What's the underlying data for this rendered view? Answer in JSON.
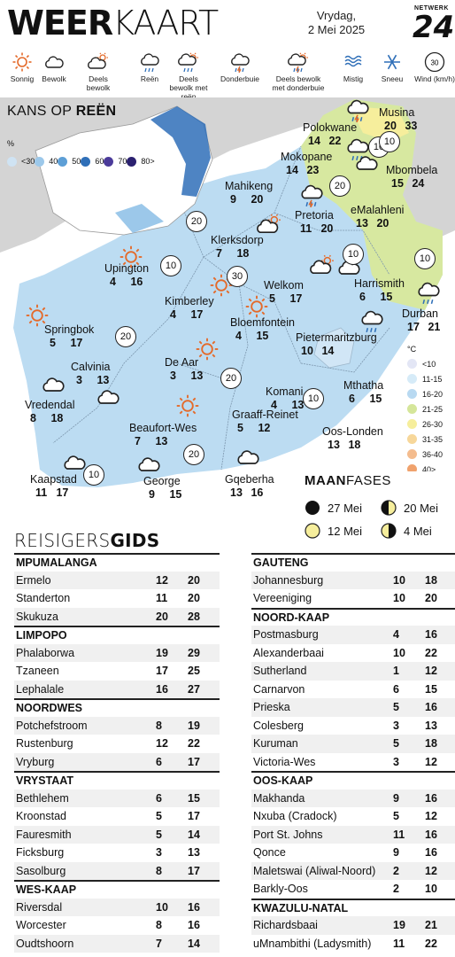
{
  "header": {
    "title_bold": "WEER",
    "title_light": "KAART",
    "day": "Vrydag,",
    "date": "2 Mei 2025",
    "logo_small": "NETWERK",
    "logo_big": "24"
  },
  "legend": [
    {
      "icon": "sun-icon",
      "label": "Sonnig"
    },
    {
      "icon": "cloud-icon",
      "label": "Bewolk"
    },
    {
      "icon": "partly-cloudy-icon",
      "label": "Deels bewolk"
    },
    {
      "icon": "rain-icon",
      "label": "Reën"
    },
    {
      "icon": "partly-cloudy-rain-icon",
      "label": "Deels bewolk met reën"
    },
    {
      "icon": "thunderstorm-icon",
      "label": "Donderbuie"
    },
    {
      "icon": "partly-cloudy-thunder-icon",
      "label": "Deels bewolk met donderbuie"
    },
    {
      "icon": "mist-icon",
      "label": "Mistig"
    },
    {
      "icon": "snow-icon",
      "label": "Sneeu"
    },
    {
      "icon": "wind-icon",
      "label": "Wind (km/h)",
      "value": "30"
    }
  ],
  "rain_legend": {
    "title_light": "KANS OP ",
    "title_bold": "REËN",
    "unit": "%",
    "levels": [
      {
        "label": "<30",
        "color": "#cfe3f3"
      },
      {
        "label": "40",
        "color": "#9cc8ea"
      },
      {
        "label": "50",
        "color": "#5d9fd6"
      },
      {
        "label": "60",
        "color": "#2f6fb8"
      },
      {
        "label": "70",
        "color": "#4b3b9a"
      },
      {
        "label": "80>",
        "color": "#2b2170"
      }
    ]
  },
  "temp_legend": {
    "unit": "°C",
    "levels": [
      {
        "label": "<10",
        "color": "#e3e6f5"
      },
      {
        "label": "11-15",
        "color": "#d6ebf8"
      },
      {
        "label": "16-20",
        "color": "#b8d9f1"
      },
      {
        "label": "21-25",
        "color": "#d5e69a"
      },
      {
        "label": "26-30",
        "color": "#f6ee9c"
      },
      {
        "label": "31-35",
        "color": "#f7d79a"
      },
      {
        "label": "36-40",
        "color": "#f4bc8e"
      },
      {
        "label": "40>",
        "color": "#f0a26d"
      }
    ]
  },
  "cities": [
    {
      "name": "Musina",
      "min": "20",
      "max": "33",
      "icon": "thunderstorm-icon"
    },
    {
      "name": "Polokwane",
      "min": "14",
      "max": "22",
      "icon": "rain-icon"
    },
    {
      "name": "Mokopane",
      "min": "14",
      "max": "23",
      "icon": "cloud-icon"
    },
    {
      "name": "Mbombela",
      "min": "15",
      "max": "24",
      "icon": "none"
    },
    {
      "name": "Mahikeng",
      "min": "9",
      "max": "20",
      "icon": "none"
    },
    {
      "name": "Pretoria",
      "min": "11",
      "max": "20",
      "icon": "thunderstorm-icon"
    },
    {
      "name": "eMalahleni",
      "min": "13",
      "max": "20",
      "icon": "none"
    },
    {
      "name": "Klerksdorp",
      "min": "7",
      "max": "18",
      "icon": "partly-cloudy-icon"
    },
    {
      "name": "Upington",
      "min": "4",
      "max": "16",
      "icon": "sun-icon"
    },
    {
      "name": "Welkom",
      "min": "5",
      "max": "17",
      "icon": "partly-cloudy-icon"
    },
    {
      "name": "Harrismith",
      "min": "6",
      "max": "15",
      "icon": "cloud-icon"
    },
    {
      "name": "Kimberley",
      "min": "4",
      "max": "17",
      "icon": "sun-icon"
    },
    {
      "name": "Bloemfontein",
      "min": "4",
      "max": "15",
      "icon": "sun-icon"
    },
    {
      "name": "Durban",
      "min": "17",
      "max": "21",
      "icon": "rain-icon"
    },
    {
      "name": "Springbok",
      "min": "5",
      "max": "17",
      "icon": "sun-icon"
    },
    {
      "name": "Pietermaritzburg",
      "min": "10",
      "max": "14",
      "icon": "rain-icon"
    },
    {
      "name": "Calvinia",
      "min": "3",
      "max": "13",
      "icon": "cloud-icon"
    },
    {
      "name": "De Aar",
      "min": "3",
      "max": "13",
      "icon": "sun-icon"
    },
    {
      "name": "Vredendal",
      "min": "8",
      "max": "18",
      "icon": "cloud-icon"
    },
    {
      "name": "Komani",
      "min": "4",
      "max": "13",
      "icon": "none"
    },
    {
      "name": "Mthatha",
      "min": "6",
      "max": "15",
      "icon": "none"
    },
    {
      "name": "Beaufort-Wes",
      "min": "7",
      "max": "13",
      "icon": "sun-icon"
    },
    {
      "name": "Graaff-Reinet",
      "min": "5",
      "max": "12",
      "icon": "none"
    },
    {
      "name": "Oos-Londen",
      "min": "13",
      "max": "18",
      "icon": "none"
    },
    {
      "name": "Kaapstad",
      "min": "11",
      "max": "17",
      "icon": "cloud-icon"
    },
    {
      "name": "George",
      "min": "9",
      "max": "15",
      "icon": "cloud-icon"
    },
    {
      "name": "Gqeberha",
      "min": "13",
      "max": "16",
      "icon": "cloud-icon"
    }
  ],
  "wind": [
    "10",
    "10",
    "20",
    "10",
    "10",
    "20",
    "10",
    "30",
    "20",
    "20",
    "10",
    "20",
    "10"
  ],
  "moon": {
    "title_bold": "MAAN",
    "title_light": "FASES",
    "phases": [
      {
        "phase": "new",
        "label": "27 Mei"
      },
      {
        "phase": "first-quarter",
        "label": "20 Mei"
      },
      {
        "phase": "full",
        "label": "12 Mei"
      },
      {
        "phase": "last-quarter",
        "label": "4 Mei"
      }
    ]
  },
  "travel": {
    "title_light": "REISIGERS",
    "title_bold": "GIDS",
    "left": [
      {
        "region": "MPUMALANGA",
        "rows": [
          [
            "Ermelo",
            "12",
            "20"
          ],
          [
            "Standerton",
            "11",
            "20"
          ],
          [
            "Skukuza",
            "20",
            "28"
          ]
        ]
      },
      {
        "region": "LIMPOPO",
        "rows": [
          [
            "Phalaborwa",
            "19",
            "29"
          ],
          [
            "Tzaneen",
            "17",
            "25"
          ],
          [
            "Lephalale",
            "16",
            "27"
          ]
        ]
      },
      {
        "region": "NOORDWES",
        "rows": [
          [
            "Potchefstroom",
            "8",
            "19"
          ],
          [
            "Rustenburg",
            "12",
            "22"
          ],
          [
            "Vryburg",
            "6",
            "17"
          ]
        ]
      },
      {
        "region": "VRYSTAAT",
        "rows": [
          [
            "Bethlehem",
            "6",
            "15"
          ],
          [
            "Kroonstad",
            "5",
            "17"
          ],
          [
            "Fauresmith",
            "5",
            "14"
          ],
          [
            "Ficksburg",
            "3",
            "13"
          ],
          [
            "Sasolburg",
            "8",
            "17"
          ]
        ]
      },
      {
        "region": "WES-KAAP",
        "rows": [
          [
            "Riversdal",
            "10",
            "16"
          ],
          [
            "Worcester",
            "8",
            "16"
          ],
          [
            "Oudtshoorn",
            "7",
            "14"
          ]
        ]
      }
    ],
    "right": [
      {
        "region": "GAUTENG",
        "rows": [
          [
            "Johannesburg",
            "10",
            "18"
          ],
          [
            "Vereeniging",
            "10",
            "20"
          ]
        ]
      },
      {
        "region": "NOORD-KAAP",
        "rows": [
          [
            "Postmasburg",
            "4",
            "16"
          ],
          [
            "Alexanderbaai",
            "10",
            "22"
          ],
          [
            "Sutherland",
            "1",
            "12"
          ],
          [
            "Carnarvon",
            "6",
            "15"
          ],
          [
            "Prieska",
            "5",
            "16"
          ],
          [
            "Colesberg",
            "3",
            "13"
          ],
          [
            "Kuruman",
            "5",
            "18"
          ],
          [
            "Victoria-Wes",
            "3",
            "12"
          ]
        ]
      },
      {
        "region": "OOS-KAAP",
        "rows": [
          [
            "Makhanda",
            "9",
            "16"
          ],
          [
            "Nxuba (Cradock)",
            "5",
            "12"
          ],
          [
            "Port St. Johns",
            "11",
            "16"
          ],
          [
            "Qonce",
            "9",
            "16"
          ],
          [
            "Maletswai (Aliwal-Noord)",
            "2",
            "12"
          ],
          [
            "Barkly-Oos",
            "2",
            "10"
          ]
        ]
      },
      {
        "region": "KWAZULU-NATAL",
        "rows": [
          [
            "Richardsbaai",
            "19",
            "21"
          ],
          [
            "uMnambithi (Ladysmith)",
            "11",
            "22"
          ]
        ]
      }
    ]
  }
}
